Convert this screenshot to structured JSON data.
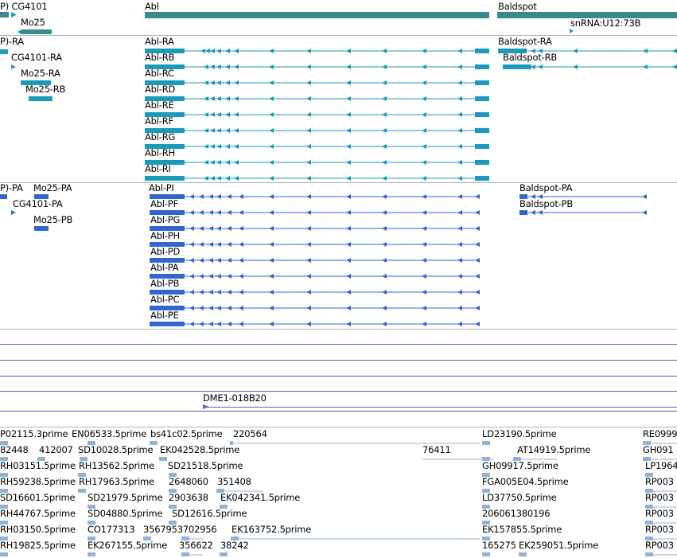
{
  "colors": {
    "gene": "#3a8a8b",
    "transcript": "#1a9bb8",
    "protein": "#3366cc",
    "clone": "#6a5acd",
    "cloneLine": "#6655aa",
    "est": "#8cb4d8",
    "separator": "#a8b4c0"
  },
  "genes": {
    "labels": [
      "P) CG4101",
      "Mo25",
      "Abl",
      "Baldspot",
      "snRNA:U12:73B"
    ]
  },
  "transcripts": {
    "labels": [
      "P)-RA",
      "CG4101-RA",
      "Mo25-RA",
      "Mo25-RB",
      "Abl-RA",
      "Abl-RB",
      "Abl-RC",
      "Abl-RD",
      "Abl-RE",
      "Abl-RF",
      "Abl-RG",
      "Abl-RH",
      "Abl-RI",
      "Baldspot-RA",
      "Baldspot-RB"
    ]
  },
  "proteins": {
    "labels": [
      "P)-PA",
      "Mo25-PA",
      "CG4101-PA",
      "Mo25-PB",
      "Abl-PI",
      "Abl-PF",
      "Abl-PG",
      "Abl-PH",
      "Abl-PD",
      "Abl-PA",
      "Abl-PB",
      "Abl-PC",
      "Abl-PE",
      "Baldspot-PA",
      "Baldspot-PB"
    ]
  },
  "clones": {
    "labels": [
      "DME1-018B20"
    ]
  },
  "ests": {
    "labels": [
      "P02115.3prime",
      "EN06533.5prime",
      "bs41c02.5prime",
      "220564",
      "LD23190.5prime",
      "RE0999",
      "82448",
      "412007",
      "SD10028.5prime",
      "EK042528.5prime",
      "76411",
      "AT14919.5prime",
      "GH091",
      "RH03151.5prime",
      "RH13562.5prime",
      "SD21518.5prime",
      "GH09917.5prime",
      "LP1964",
      "RH59238.5prime",
      "RH17963.5prime",
      "2648060",
      "351408",
      "FGA005E04.5prime",
      "RP003",
      "SD16601.5prime",
      "SD21979.5prime",
      "2903638",
      "EK042341.5prime",
      "LD37750.5prime",
      "RP003",
      "RH44767.5prime",
      "SD04880.5prime",
      "SD12616.5prime",
      "206061380196",
      "RP003",
      "RH03150.5prime",
      "CO177313",
      "3567953702956",
      "EK163752.5prime",
      "EK157855.5prime",
      "RP003",
      "RH19825.5prime",
      "EK267155.5prime",
      "356622",
      "38242",
      "165275",
      "EK259051.5prime",
      "RP003"
    ]
  }
}
